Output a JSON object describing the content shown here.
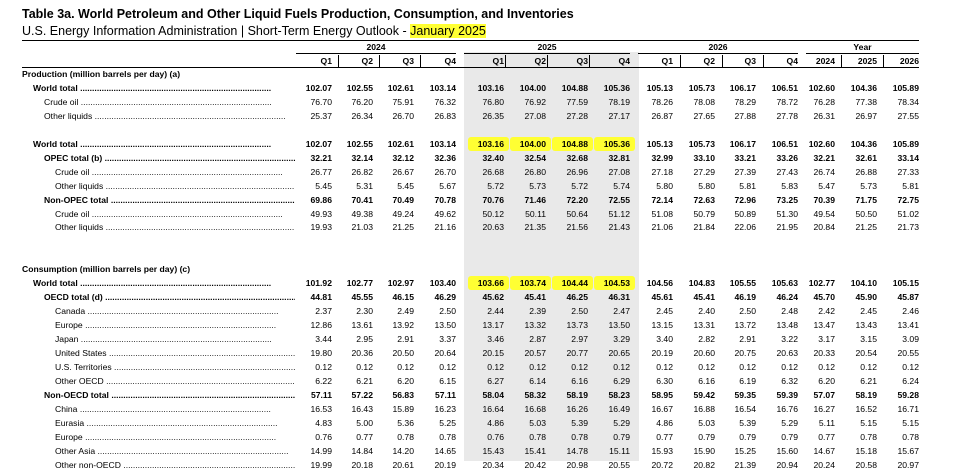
{
  "title": "Table 3a.  World Petroleum and Other Liquid Fuels Production, Consumption, and Inventories",
  "subtitle_prefix": "U.S. Energy Information Administration  |  Short-Term Energy Outlook - ",
  "subtitle_highlight": "January 2025",
  "year_groups": [
    {
      "label": "2024",
      "cols": [
        "Q1",
        "Q2",
        "Q3",
        "Q4"
      ]
    },
    {
      "label": "2025",
      "cols": [
        "Q1",
        "Q2",
        "Q3",
        "Q4"
      ]
    },
    {
      "label": "2026",
      "cols": [
        "Q1",
        "Q2",
        "Q3",
        "Q4"
      ]
    },
    {
      "label": "Year",
      "cols": [
        "2024",
        "2025",
        "2026"
      ]
    }
  ],
  "highlight_color": "#ffff33",
  "shade_color": "#e9e9e9",
  "rows": [
    {
      "type": "section",
      "label": "Production (million barrels per day) (a)"
    },
    {
      "type": "data",
      "label": "World total",
      "indent": 1,
      "bold": true,
      "dots": true,
      "values": [
        "102.07",
        "102.55",
        "102.61",
        "103.14",
        "103.16",
        "104.00",
        "104.88",
        "105.36",
        "105.13",
        "105.73",
        "106.17",
        "106.51",
        "102.60",
        "104.36",
        "105.89"
      ]
    },
    {
      "type": "data",
      "label": "Crude oil",
      "indent": 2,
      "bold": false,
      "dots": true,
      "values": [
        "76.70",
        "76.20",
        "75.91",
        "76.32",
        "76.80",
        "76.92",
        "77.59",
        "78.19",
        "78.26",
        "78.08",
        "78.29",
        "78.72",
        "76.28",
        "77.38",
        "78.34"
      ]
    },
    {
      "type": "data",
      "label": "Other liquids",
      "indent": 2,
      "bold": false,
      "dots": true,
      "values": [
        "25.37",
        "26.34",
        "26.70",
        "26.83",
        "26.35",
        "27.08",
        "27.28",
        "27.17",
        "26.87",
        "27.65",
        "27.88",
        "27.78",
        "26.31",
        "26.97",
        "27.55"
      ]
    },
    {
      "type": "blank"
    },
    {
      "type": "data",
      "label": "World total",
      "indent": 1,
      "bold": true,
      "dots": true,
      "values": [
        "102.07",
        "102.55",
        "102.61",
        "103.14",
        "103.16",
        "104.00",
        "104.88",
        "105.36",
        "105.13",
        "105.73",
        "106.17",
        "106.51",
        "102.60",
        "104.36",
        "105.89"
      ],
      "highlight": [
        4,
        5,
        6,
        7
      ]
    },
    {
      "type": "data",
      "label": "OPEC total (b)",
      "indent": 2,
      "bold": true,
      "dots": true,
      "values": [
        "32.21",
        "32.14",
        "32.12",
        "32.36",
        "32.40",
        "32.54",
        "32.68",
        "32.81",
        "32.99",
        "33.10",
        "33.21",
        "33.26",
        "32.21",
        "32.61",
        "33.14"
      ]
    },
    {
      "type": "data",
      "label": "Crude oil",
      "indent": 3,
      "bold": false,
      "dots": true,
      "values": [
        "26.77",
        "26.82",
        "26.67",
        "26.70",
        "26.68",
        "26.80",
        "26.96",
        "27.08",
        "27.18",
        "27.29",
        "27.39",
        "27.43",
        "26.74",
        "26.88",
        "27.33"
      ]
    },
    {
      "type": "data",
      "label": "Other liquids",
      "indent": 3,
      "bold": false,
      "dots": true,
      "values": [
        "5.45",
        "5.31",
        "5.45",
        "5.67",
        "5.72",
        "5.73",
        "5.72",
        "5.74",
        "5.80",
        "5.80",
        "5.81",
        "5.83",
        "5.47",
        "5.73",
        "5.81"
      ]
    },
    {
      "type": "data",
      "label": "Non-OPEC total",
      "indent": 2,
      "bold": true,
      "dots": true,
      "values": [
        "69.86",
        "70.41",
        "70.49",
        "70.78",
        "70.76",
        "71.46",
        "72.20",
        "72.55",
        "72.14",
        "72.63",
        "72.96",
        "73.25",
        "70.39",
        "71.75",
        "72.75"
      ]
    },
    {
      "type": "data",
      "label": "Crude oil",
      "indent": 3,
      "bold": false,
      "dots": true,
      "values": [
        "49.93",
        "49.38",
        "49.24",
        "49.62",
        "50.12",
        "50.11",
        "50.64",
        "51.12",
        "51.08",
        "50.79",
        "50.89",
        "51.30",
        "49.54",
        "50.50",
        "51.02"
      ]
    },
    {
      "type": "data",
      "label": "Other liquids",
      "indent": 3,
      "bold": false,
      "dots": true,
      "values": [
        "19.93",
        "21.03",
        "21.25",
        "21.16",
        "20.63",
        "21.35",
        "21.56",
        "21.43",
        "21.06",
        "21.84",
        "22.06",
        "21.95",
        "20.84",
        "21.25",
        "21.73"
      ]
    },
    {
      "type": "blank"
    },
    {
      "type": "blank"
    },
    {
      "type": "section",
      "label": "Consumption (million barrels per day) (c)"
    },
    {
      "type": "data",
      "label": "World total",
      "indent": 1,
      "bold": true,
      "dots": true,
      "values": [
        "101.92",
        "102.77",
        "102.97",
        "103.40",
        "103.66",
        "103.74",
        "104.44",
        "104.53",
        "104.56",
        "104.83",
        "105.55",
        "105.63",
        "102.77",
        "104.10",
        "105.15"
      ],
      "highlight": [
        4,
        5,
        6,
        7
      ]
    },
    {
      "type": "data",
      "label": "OECD total (d)",
      "indent": 2,
      "bold": true,
      "dots": true,
      "values": [
        "44.81",
        "45.55",
        "46.15",
        "46.29",
        "45.62",
        "45.41",
        "46.25",
        "46.31",
        "45.61",
        "45.41",
        "46.19",
        "46.24",
        "45.70",
        "45.90",
        "45.87"
      ]
    },
    {
      "type": "data",
      "label": "Canada",
      "indent": 3,
      "bold": false,
      "dots": true,
      "values": [
        "2.37",
        "2.30",
        "2.49",
        "2.50",
        "2.44",
        "2.39",
        "2.50",
        "2.47",
        "2.45",
        "2.40",
        "2.50",
        "2.48",
        "2.42",
        "2.45",
        "2.46"
      ]
    },
    {
      "type": "data",
      "label": "Europe",
      "indent": 3,
      "bold": false,
      "dots": true,
      "values": [
        "12.86",
        "13.61",
        "13.92",
        "13.50",
        "13.17",
        "13.32",
        "13.73",
        "13.50",
        "13.15",
        "13.31",
        "13.72",
        "13.48",
        "13.47",
        "13.43",
        "13.41"
      ]
    },
    {
      "type": "data",
      "label": "Japan",
      "indent": 3,
      "bold": false,
      "dots": true,
      "values": [
        "3.44",
        "2.95",
        "2.91",
        "3.37",
        "3.46",
        "2.87",
        "2.97",
        "3.29",
        "3.40",
        "2.82",
        "2.91",
        "3.22",
        "3.17",
        "3.15",
        "3.09"
      ]
    },
    {
      "type": "data",
      "label": "United States",
      "indent": 3,
      "bold": false,
      "dots": true,
      "values": [
        "19.80",
        "20.36",
        "20.50",
        "20.64",
        "20.15",
        "20.57",
        "20.77",
        "20.65",
        "20.19",
        "20.60",
        "20.75",
        "20.63",
        "20.33",
        "20.54",
        "20.55"
      ]
    },
    {
      "type": "data",
      "label": "U.S. Territories",
      "indent": 3,
      "bold": false,
      "dots": true,
      "values": [
        "0.12",
        "0.12",
        "0.12",
        "0.12",
        "0.12",
        "0.12",
        "0.12",
        "0.12",
        "0.12",
        "0.12",
        "0.12",
        "0.12",
        "0.12",
        "0.12",
        "0.12"
      ]
    },
    {
      "type": "data",
      "label": "Other OECD",
      "indent": 3,
      "bold": false,
      "dots": true,
      "values": [
        "6.22",
        "6.21",
        "6.20",
        "6.15",
        "6.27",
        "6.14",
        "6.16",
        "6.29",
        "6.30",
        "6.16",
        "6.19",
        "6.32",
        "6.20",
        "6.21",
        "6.24"
      ]
    },
    {
      "type": "data",
      "label": "Non-OECD total",
      "indent": 2,
      "bold": true,
      "dots": true,
      "values": [
        "57.11",
        "57.22",
        "56.83",
        "57.11",
        "58.04",
        "58.32",
        "58.19",
        "58.23",
        "58.95",
        "59.42",
        "59.35",
        "59.39",
        "57.07",
        "58.19",
        "59.28"
      ]
    },
    {
      "type": "data",
      "label": "China",
      "indent": 3,
      "bold": false,
      "dots": true,
      "values": [
        "16.53",
        "16.43",
        "15.89",
        "16.23",
        "16.64",
        "16.68",
        "16.26",
        "16.49",
        "16.67",
        "16.88",
        "16.54",
        "16.76",
        "16.27",
        "16.52",
        "16.71"
      ]
    },
    {
      "type": "data",
      "label": "Eurasia",
      "indent": 3,
      "bold": false,
      "dots": true,
      "values": [
        "4.83",
        "5.00",
        "5.36",
        "5.25",
        "4.86",
        "5.03",
        "5.39",
        "5.29",
        "4.86",
        "5.03",
        "5.39",
        "5.29",
        "5.11",
        "5.15",
        "5.15"
      ]
    },
    {
      "type": "data",
      "label": "Europe",
      "indent": 3,
      "bold": false,
      "dots": true,
      "values": [
        "0.76",
        "0.77",
        "0.78",
        "0.78",
        "0.76",
        "0.78",
        "0.78",
        "0.79",
        "0.77",
        "0.79",
        "0.79",
        "0.79",
        "0.77",
        "0.78",
        "0.78"
      ]
    },
    {
      "type": "data",
      "label": "Other Asia",
      "indent": 3,
      "bold": false,
      "dots": true,
      "values": [
        "14.99",
        "14.84",
        "14.20",
        "14.65",
        "15.43",
        "15.41",
        "14.78",
        "15.11",
        "15.93",
        "15.90",
        "15.25",
        "15.60",
        "14.67",
        "15.18",
        "15.67"
      ]
    },
    {
      "type": "data",
      "label": "Other non-OECD",
      "indent": 3,
      "bold": false,
      "dots": true,
      "values": [
        "19.99",
        "20.18",
        "20.61",
        "20.19",
        "20.34",
        "20.42",
        "20.98",
        "20.55",
        "20.72",
        "20.82",
        "21.39",
        "20.94",
        "20.24",
        "20.58",
        "20.97"
      ]
    }
  ]
}
